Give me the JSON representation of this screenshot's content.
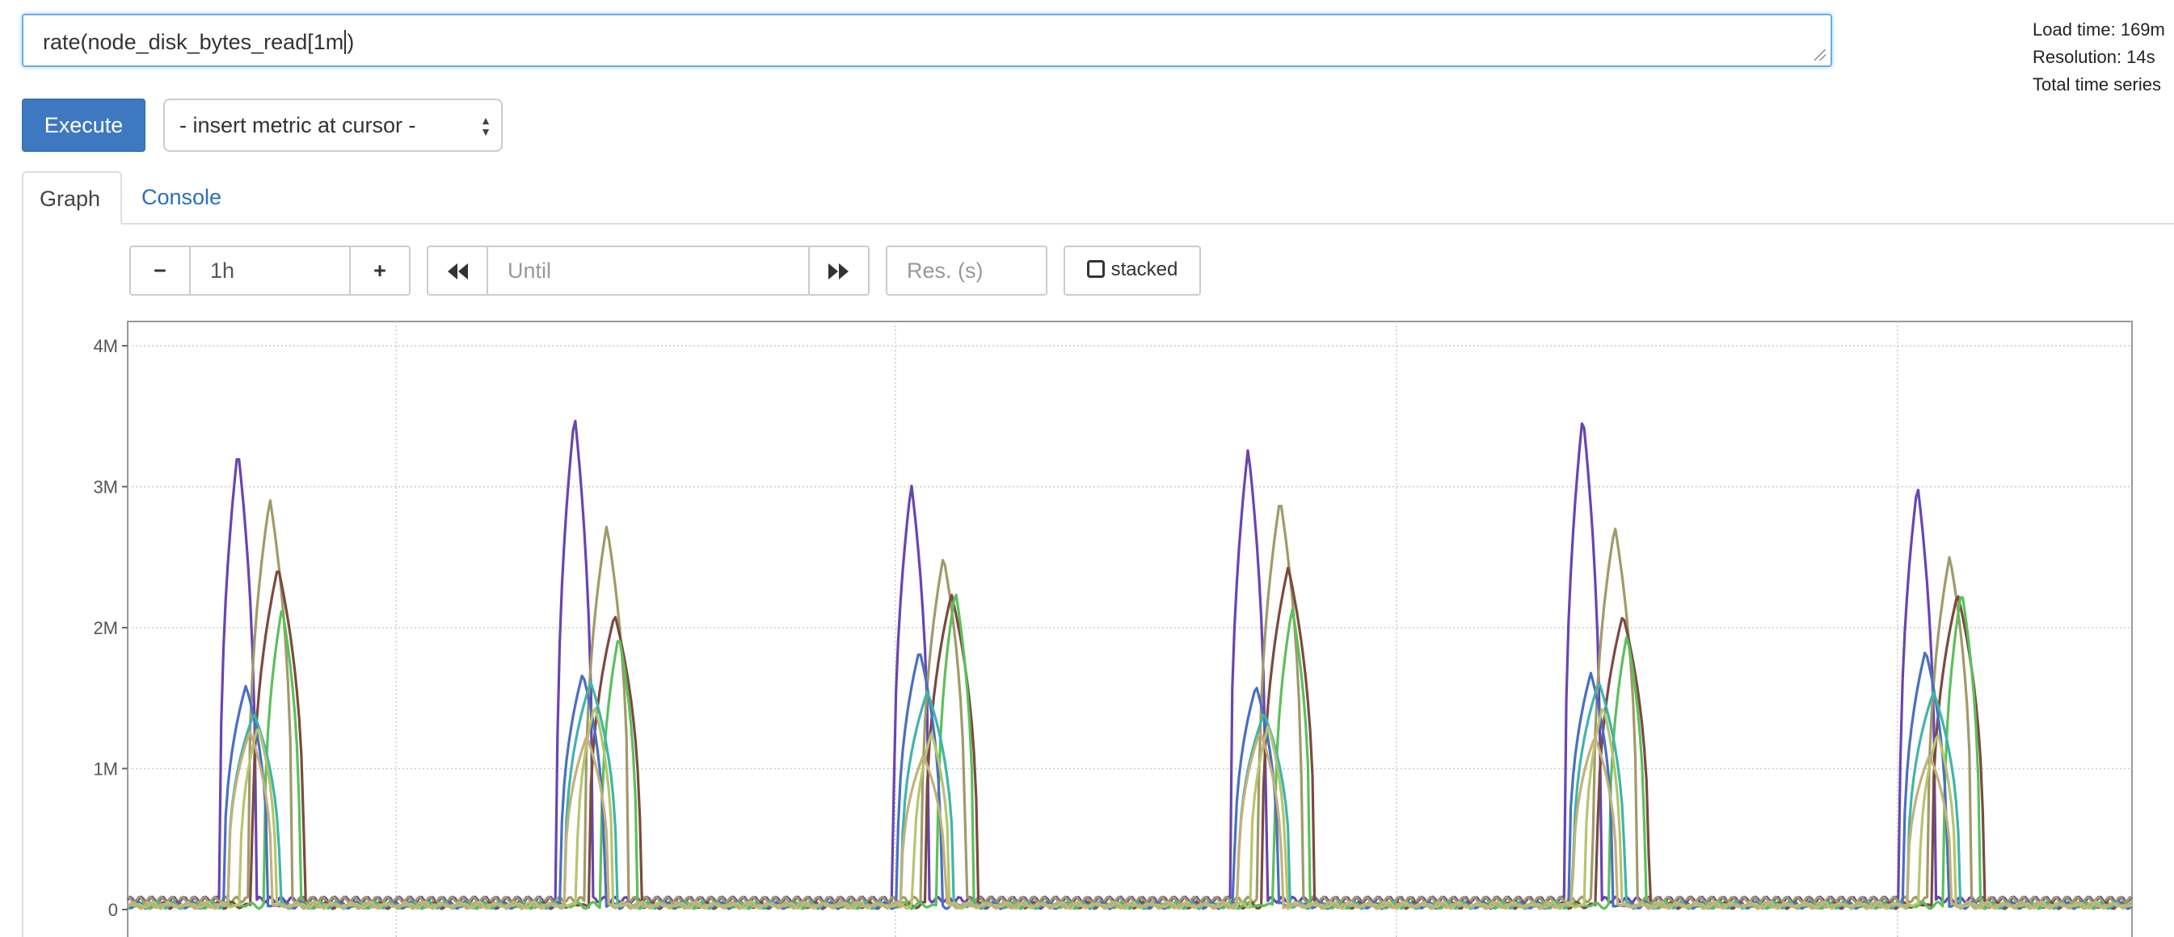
{
  "query": {
    "text_before_caret": "rate(node_disk_bytes_read[1m",
    "text_after_caret": ")"
  },
  "stats": {
    "load_time": "Load time: 169m",
    "resolution": "Resolution: 14s",
    "total_series": "Total time series"
  },
  "toolbar": {
    "execute_label": "Execute",
    "insert_metric_value": "- insert metric at cursor -"
  },
  "tabs": [
    {
      "label": "Graph",
      "active": true
    },
    {
      "label": "Console",
      "active": false
    }
  ],
  "graph_controls": {
    "range_minus": "−",
    "range_value": "1h",
    "range_plus": "+",
    "back_icon": "double-left-arrow",
    "until_placeholder": "Until",
    "forward_icon": "double-right-arrow",
    "resolution_placeholder": "Res. (s)",
    "stacked_label": "stacked"
  },
  "chart_data": {
    "type": "line",
    "y_ticks": [
      "4M",
      "3M",
      "2M",
      "1M",
      "0"
    ],
    "ylim": [
      0,
      4000000
    ],
    "xlim": [
      0,
      1
    ],
    "grid": true,
    "bursts": [
      0.055,
      0.223,
      0.391,
      0.559,
      0.726,
      0.893
    ],
    "series": [
      {
        "color": "#6845b0",
        "peak": 3550000,
        "offset": 0.0
      },
      {
        "color": "#a09a6a",
        "peak": 2950000,
        "offset": 0.016
      },
      {
        "color": "#7b4a3e",
        "peak": 2450000,
        "offset": 0.02
      },
      {
        "color": "#5cc05a",
        "peak": 2300000,
        "offset": 0.022
      },
      {
        "color": "#4a6fc0",
        "peak": 1850000,
        "offset": 0.004
      },
      {
        "color": "#3fb5a8",
        "peak": 1650000,
        "offset": 0.008
      },
      {
        "color": "#b7c46e",
        "peak": 1450000,
        "offset": 0.01
      },
      {
        "color": "#c4b07a",
        "peak": 1300000,
        "offset": 0.006
      }
    ]
  }
}
